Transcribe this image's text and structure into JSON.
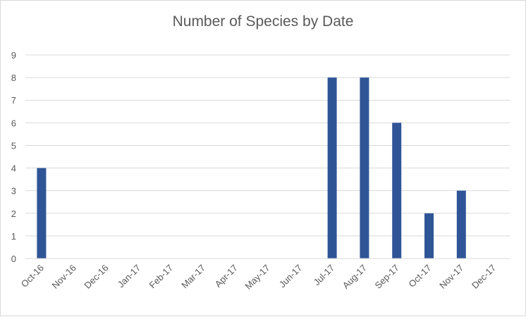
{
  "chart_data": {
    "type": "bar",
    "title": "Number of Species by Date",
    "xlabel": "",
    "ylabel": "",
    "categories": [
      "Oct-16",
      "Nov-16",
      "Dec-16",
      "Jan-17",
      "Feb-17",
      "Mar-17",
      "Apr-17",
      "May-17",
      "Jun-17",
      "Jul-17",
      "Aug-17",
      "Sep-17",
      "Oct-17",
      "Nov-17",
      "Dec-17"
    ],
    "series": [
      {
        "values": [
          4,
          0,
          0,
          0,
          0,
          0,
          0,
          0,
          0,
          8,
          8,
          6,
          2,
          3,
          0
        ]
      }
    ],
    "ylim": [
      0,
      9
    ],
    "yticks": [
      0,
      1,
      2,
      3,
      4,
      5,
      6,
      7,
      8,
      9
    ],
    "grid": true,
    "legend": "none",
    "colors": {
      "bar": "#2f5597",
      "grid": "#d9d9d9",
      "text": "#595959"
    }
  }
}
